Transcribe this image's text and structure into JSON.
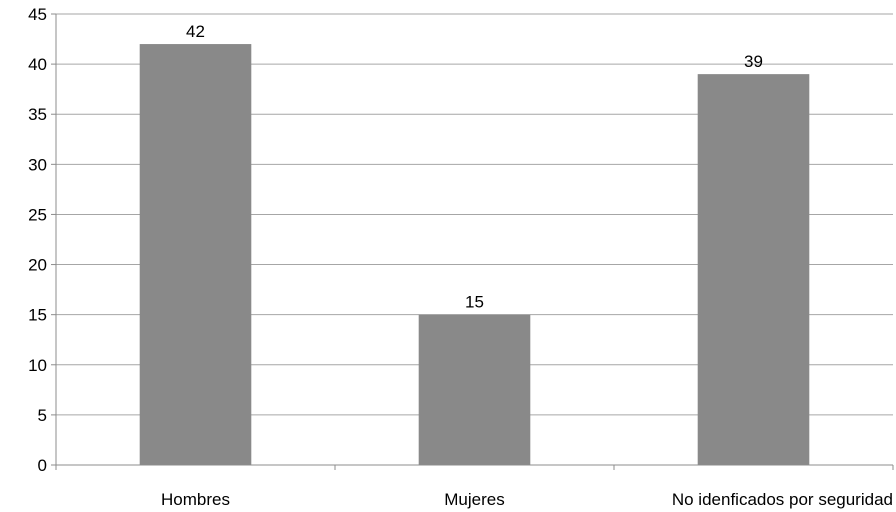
{
  "chart_data": {
    "type": "bar",
    "title": "",
    "xlabel": "",
    "ylabel": "",
    "categories": [
      "Hombres",
      "Mujeres",
      "No idenficados por seguridad"
    ],
    "values": [
      42,
      15,
      39
    ],
    "data_labels": [
      "42",
      "15",
      "39"
    ],
    "ylim": [
      0,
      45
    ],
    "yticks": [
      "0",
      "5",
      "10",
      "15",
      "20",
      "25",
      "30",
      "35",
      "40",
      "45"
    ],
    "grid": true,
    "legend": "none",
    "bar_color": "#898989"
  }
}
